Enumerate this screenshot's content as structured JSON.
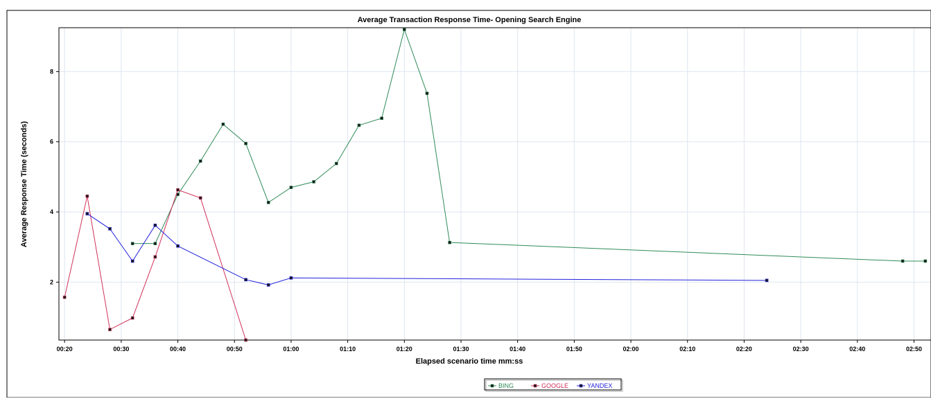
{
  "colors": {
    "bing": "#2e8b57",
    "google": "#d0305a",
    "yandex": "#2222dd",
    "grid": "#dde6f0"
  },
  "chart_data": {
    "type": "line",
    "title": "Average Transaction Response Time- Opening Search Engine",
    "xlabel": "Elapsed scenario time mm:ss",
    "ylabel": "Average Response Time (seconds)",
    "x_unit": "seconds",
    "xlim": [
      19,
      173
    ],
    "ylim": [
      0.35,
      9.25
    ],
    "x_ticks": [
      {
        "value": 20,
        "label": "00:20"
      },
      {
        "value": 30,
        "label": "00:30"
      },
      {
        "value": 40,
        "label": "00:40"
      },
      {
        "value": 50,
        "label": "00:50"
      },
      {
        "value": 60,
        "label": "01:00"
      },
      {
        "value": 70,
        "label": "01:10"
      },
      {
        "value": 80,
        "label": "01:20"
      },
      {
        "value": 90,
        "label": "01:30"
      },
      {
        "value": 100,
        "label": "01:40"
      },
      {
        "value": 110,
        "label": "01:50"
      },
      {
        "value": 120,
        "label": "02:00"
      },
      {
        "value": 130,
        "label": "02:10"
      },
      {
        "value": 140,
        "label": "02:20"
      },
      {
        "value": 150,
        "label": "02:30"
      },
      {
        "value": 160,
        "label": "02:40"
      },
      {
        "value": 170,
        "label": "02:50"
      }
    ],
    "y_ticks": [
      {
        "value": 2,
        "label": "2"
      },
      {
        "value": 4,
        "label": "4"
      },
      {
        "value": 6,
        "label": "6"
      },
      {
        "value": 8,
        "label": "8"
      }
    ],
    "grid": true,
    "legend_position": "bottom-center",
    "series": [
      {
        "name": "BING",
        "color_key": "bing",
        "points": [
          [
            32,
            3.1
          ],
          [
            36,
            3.1
          ],
          [
            40,
            4.5
          ],
          [
            44,
            5.45
          ],
          [
            48,
            6.5
          ],
          [
            52,
            5.95
          ],
          [
            56,
            4.27
          ],
          [
            60,
            4.7
          ],
          [
            64,
            4.86
          ],
          [
            68,
            5.38
          ],
          [
            72,
            6.47
          ],
          [
            76,
            6.67
          ],
          [
            80,
            9.2
          ],
          [
            84,
            7.38
          ],
          [
            88,
            3.13
          ],
          [
            168,
            2.6
          ],
          [
            172,
            2.6
          ]
        ]
      },
      {
        "name": "GOOGLE",
        "color_key": "google",
        "points": [
          [
            20,
            1.57
          ],
          [
            24,
            4.45
          ],
          [
            28,
            0.65
          ],
          [
            32,
            0.98
          ],
          [
            36,
            2.72
          ],
          [
            40,
            4.63
          ],
          [
            44,
            4.4
          ],
          [
            52,
            0.35
          ]
        ]
      },
      {
        "name": "YANDEX",
        "color_key": "yandex",
        "points": [
          [
            24,
            3.95
          ],
          [
            28,
            3.52
          ],
          [
            32,
            2.6
          ],
          [
            36,
            3.62
          ],
          [
            40,
            3.03
          ],
          [
            52,
            2.07
          ],
          [
            56,
            1.92
          ],
          [
            60,
            2.12
          ],
          [
            144,
            2.05
          ]
        ]
      }
    ]
  }
}
